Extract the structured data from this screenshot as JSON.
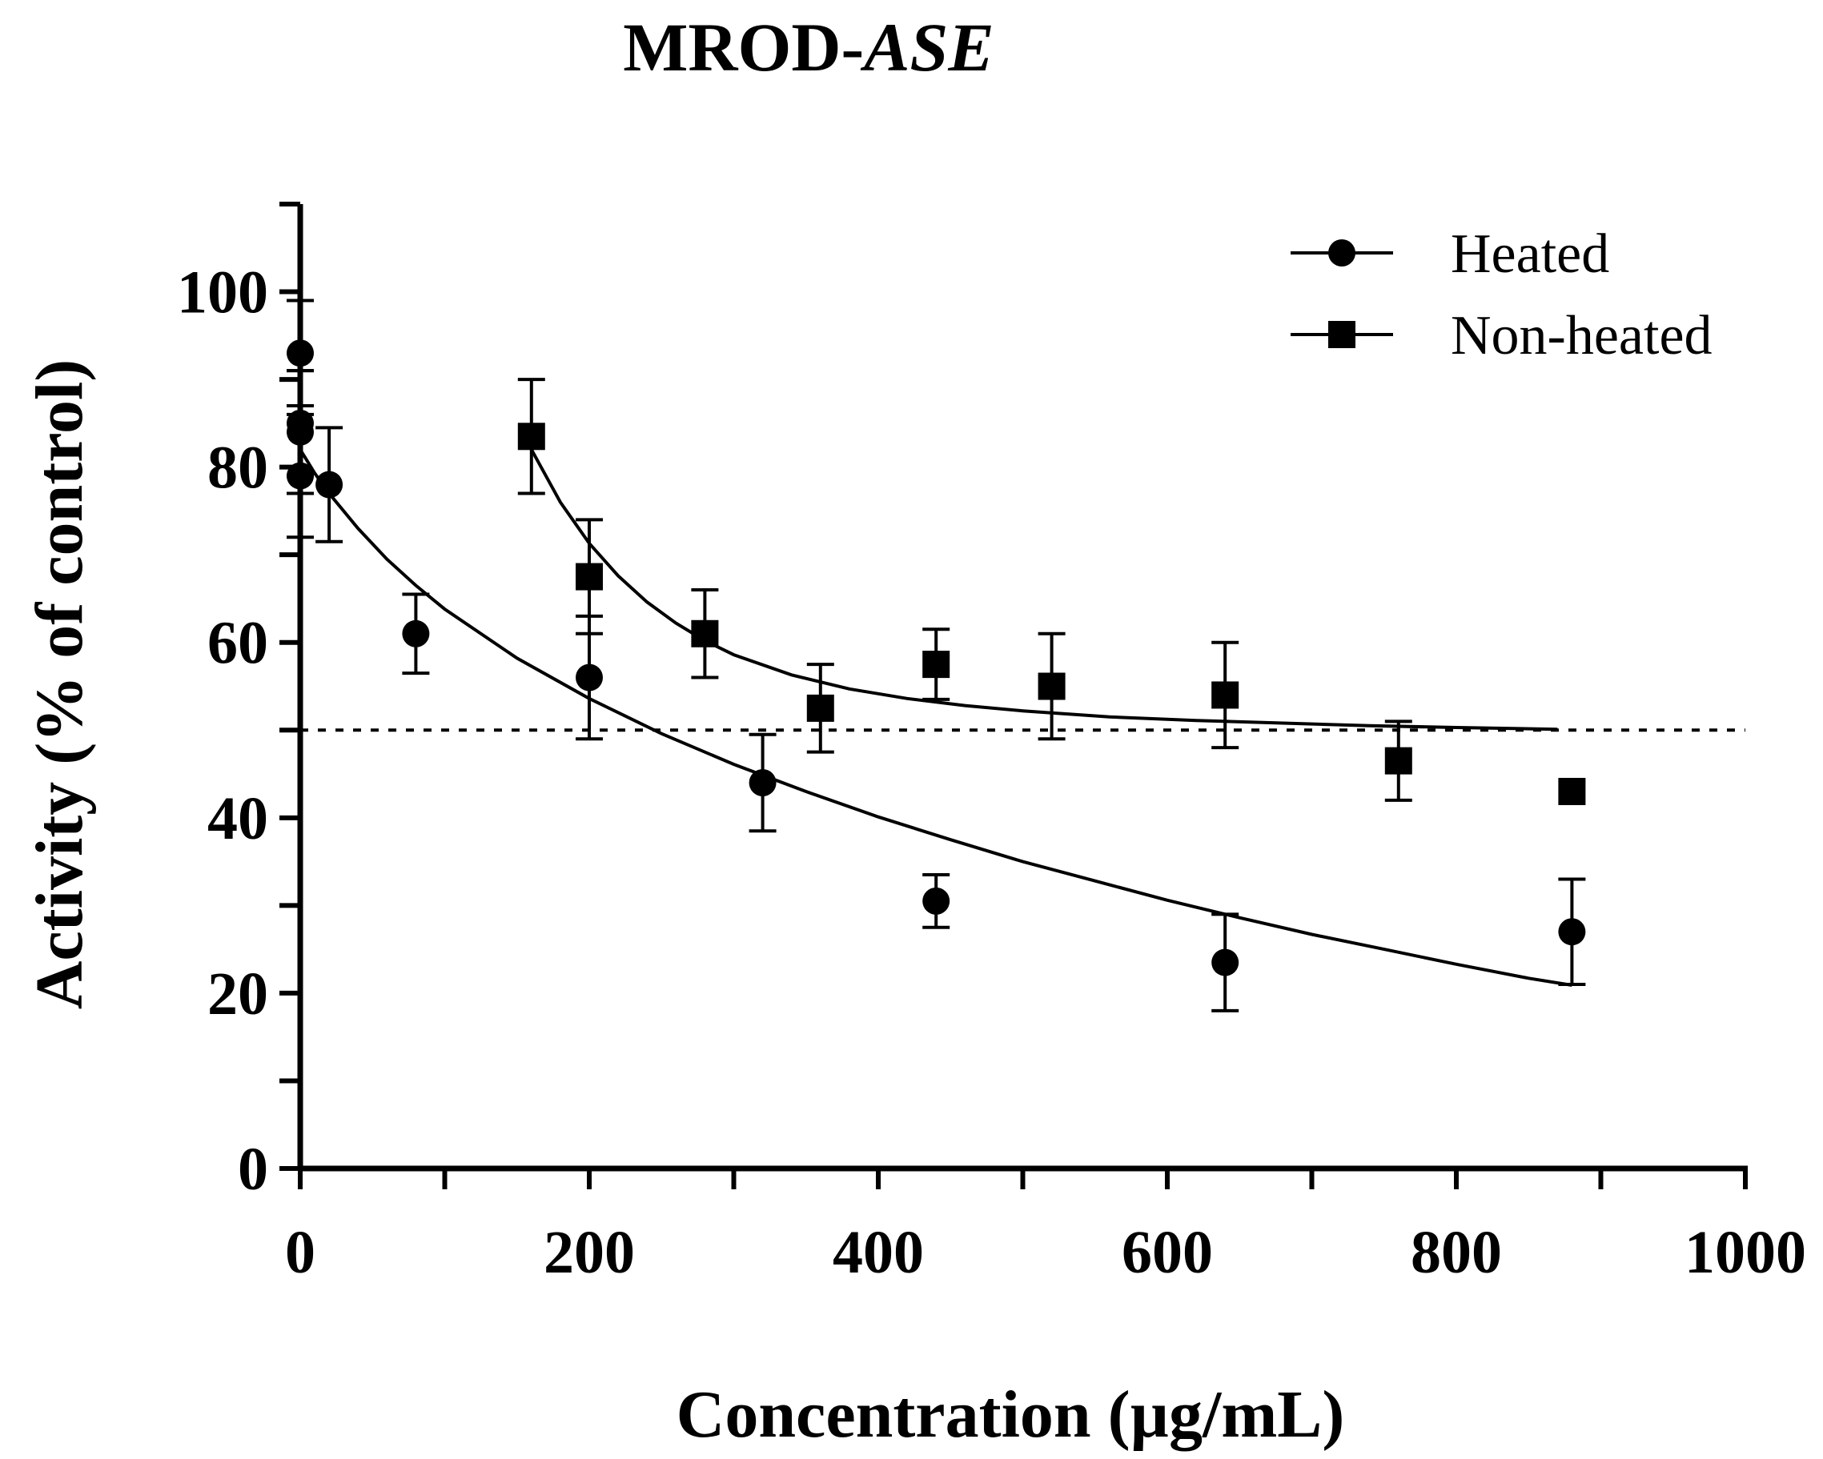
{
  "chart_data": {
    "type": "scatter",
    "title_prefix": "MROD-",
    "title_italic": "ASE",
    "xlabel": "Concentration (µg/mL)",
    "ylabel": "Activity (% of control)",
    "xlim": [
      0,
      1000
    ],
    "ylim": [
      0,
      110
    ],
    "x_ticks": [
      0,
      200,
      400,
      600,
      800,
      1000
    ],
    "y_ticks": [
      0,
      20,
      40,
      60,
      80,
      100
    ],
    "x_minor_step": 100,
    "y_minor_step": 10,
    "reference_line": {
      "y": 50,
      "style": "dotted"
    },
    "legend": {
      "placement": "top-right"
    },
    "series": [
      {
        "name": "Heated",
        "marker": "circle",
        "points": [
          {
            "x": 0,
            "y": 93,
            "err": 6
          },
          {
            "x": 0,
            "y": 85,
            "err": 6
          },
          {
            "x": 0,
            "y": 84,
            "err": 7
          },
          {
            "x": 0,
            "y": 79,
            "err": 7
          },
          {
            "x": 20,
            "y": 78,
            "err": 6.5
          },
          {
            "x": 80,
            "y": 61,
            "err": 4.5
          },
          {
            "x": 200,
            "y": 56,
            "err": 7
          },
          {
            "x": 320,
            "y": 44,
            "err": 5.5
          },
          {
            "x": 440,
            "y": 30.5,
            "err": 3
          },
          {
            "x": 640,
            "y": 23.5,
            "err": 5.5
          },
          {
            "x": 880,
            "y": 27,
            "err": 6
          }
        ],
        "fit": {
          "x": [
            0,
            10,
            20,
            40,
            60,
            80,
            100,
            150,
            200,
            250,
            300,
            350,
            400,
            450,
            500,
            550,
            600,
            650,
            700,
            750,
            800,
            850,
            880
          ],
          "y": [
            82,
            79.3,
            77,
            73,
            69.5,
            66.5,
            63.8,
            58.2,
            53.6,
            49.6,
            46.1,
            43,
            40.1,
            37.5,
            35,
            32.8,
            30.6,
            28.6,
            26.7,
            25,
            23.3,
            21.7,
            20.9
          ]
        }
      },
      {
        "name": "Non-heated",
        "marker": "square",
        "points": [
          {
            "x": 160,
            "y": 83.5,
            "err": 6.5
          },
          {
            "x": 200,
            "y": 67.5,
            "err": 6.5
          },
          {
            "x": 280,
            "y": 61,
            "err": 5
          },
          {
            "x": 360,
            "y": 52.5,
            "err": 5
          },
          {
            "x": 440,
            "y": 57.5,
            "err": 4
          },
          {
            "x": 520,
            "y": 55,
            "err": 6
          },
          {
            "x": 640,
            "y": 54,
            "err": 6
          },
          {
            "x": 760,
            "y": 46.5,
            "err": 4.5
          },
          {
            "x": 880,
            "y": 43,
            "err": 0
          }
        ],
        "fit": {
          "x": [
            160,
            180,
            200,
            220,
            240,
            260,
            280,
            300,
            340,
            380,
            420,
            460,
            500,
            560,
            620,
            680,
            740,
            800,
            870
          ],
          "y": [
            82,
            76,
            71.3,
            67.6,
            64.6,
            62.2,
            60.2,
            58.6,
            56.3,
            54.7,
            53.6,
            52.8,
            52.2,
            51.5,
            51.1,
            50.8,
            50.5,
            50.3,
            50.1
          ]
        }
      }
    ]
  }
}
